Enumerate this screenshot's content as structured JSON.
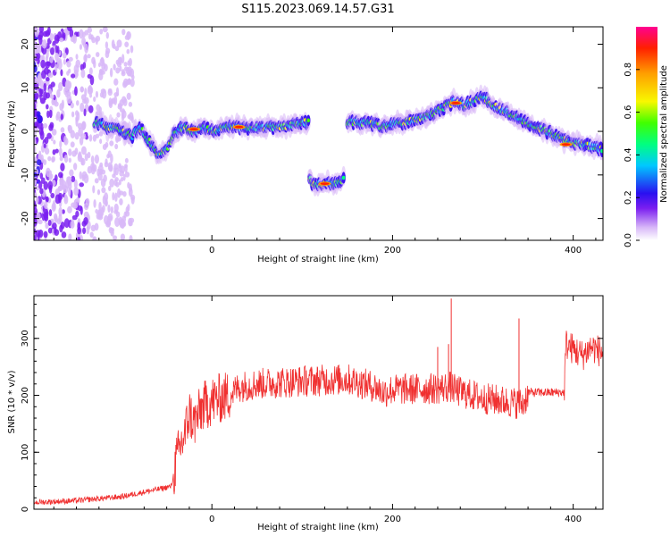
{
  "title": "S115.2023.069.14.57.G31",
  "chart_data": [
    {
      "type": "heatmap",
      "xlabel": "Height of straight line (km)",
      "ylabel": "Frequency (Hz)",
      "xlim": [
        -197,
        433
      ],
      "ylim": [
        -25,
        24
      ],
      "xticks": [
        0,
        200,
        400
      ],
      "yticks": [
        -20,
        -10,
        0,
        10,
        20
      ],
      "grid": false,
      "colorbar": {
        "label": "Normalized spectral amplitude",
        "range": [
          0,
          1
        ],
        "ticks": [
          0.0,
          0.2,
          0.4,
          0.6,
          0.8
        ],
        "tick_labels": [
          "0.0",
          "0.2",
          "0.4",
          "0.6",
          "0.8"
        ],
        "colormap": [
          "#ffffff",
          "#d8b8f8",
          "#7a1ef0",
          "#2a10f0",
          "#00c8ff",
          "#00ff80",
          "#40ff00",
          "#f8f800",
          "#ffa000",
          "#ff2000",
          "#ff0090"
        ]
      },
      "track_segments": [
        {
          "x": [
            -130,
            -100,
            -88,
            -80,
            -70,
            -60,
            -50,
            -40,
            -30,
            -20,
            -10,
            0,
            20,
            40,
            60,
            80,
            100,
            108
          ],
          "y": [
            2,
            0,
            -1,
            1,
            -2,
            -5,
            -4,
            0,
            1,
            0,
            1,
            0,
            1,
            1,
            1,
            1,
            2,
            2
          ]
        },
        {
          "x": [
            108,
            112,
            125,
            140,
            147
          ],
          "y": [
            -11,
            -12,
            -12,
            -12,
            -11
          ]
        },
        {
          "x": [
            150,
            170,
            190,
            210,
            230,
            245,
            260,
            270,
            280,
            290,
            300,
            310,
            330,
            350,
            370,
            390,
            410,
            433
          ],
          "y": [
            2,
            2,
            1,
            2,
            3,
            4,
            6,
            7,
            6,
            7,
            8,
            6,
            4,
            2,
            0,
            -2,
            -3,
            -4
          ]
        }
      ]
    },
    {
      "type": "line",
      "xlabel": "Height of straight line (km)",
      "ylabel": "SNR (10 * v/v)",
      "xlim": [
        -197,
        433
      ],
      "ylim": [
        0,
        375
      ],
      "xticks": [
        0,
        200,
        400
      ],
      "yticks": [
        0,
        100,
        200,
        300
      ],
      "grid": false,
      "color": "#f03030",
      "x": [
        -197,
        -150,
        -100,
        -60,
        -45,
        -40,
        -35,
        -30,
        -25,
        -20,
        -10,
        0,
        10,
        20,
        30,
        50,
        100,
        150,
        180,
        190,
        200,
        250,
        265,
        270,
        300,
        330,
        345,
        350,
        390,
        392,
        410,
        420,
        433
      ],
      "y": [
        12,
        15,
        22,
        35,
        40,
        80,
        110,
        130,
        170,
        150,
        180,
        190,
        195,
        200,
        215,
        220,
        225,
        228,
        215,
        205,
        210,
        212,
        215,
        208,
        195,
        188,
        185,
        205,
        205,
        290,
        270,
        285,
        275
      ],
      "spikes": [
        {
          "x": 265,
          "y": 370
        },
        {
          "x": 262,
          "y": 290
        },
        {
          "x": 340,
          "y": 335
        },
        {
          "x": 250,
          "y": 285
        }
      ]
    }
  ]
}
